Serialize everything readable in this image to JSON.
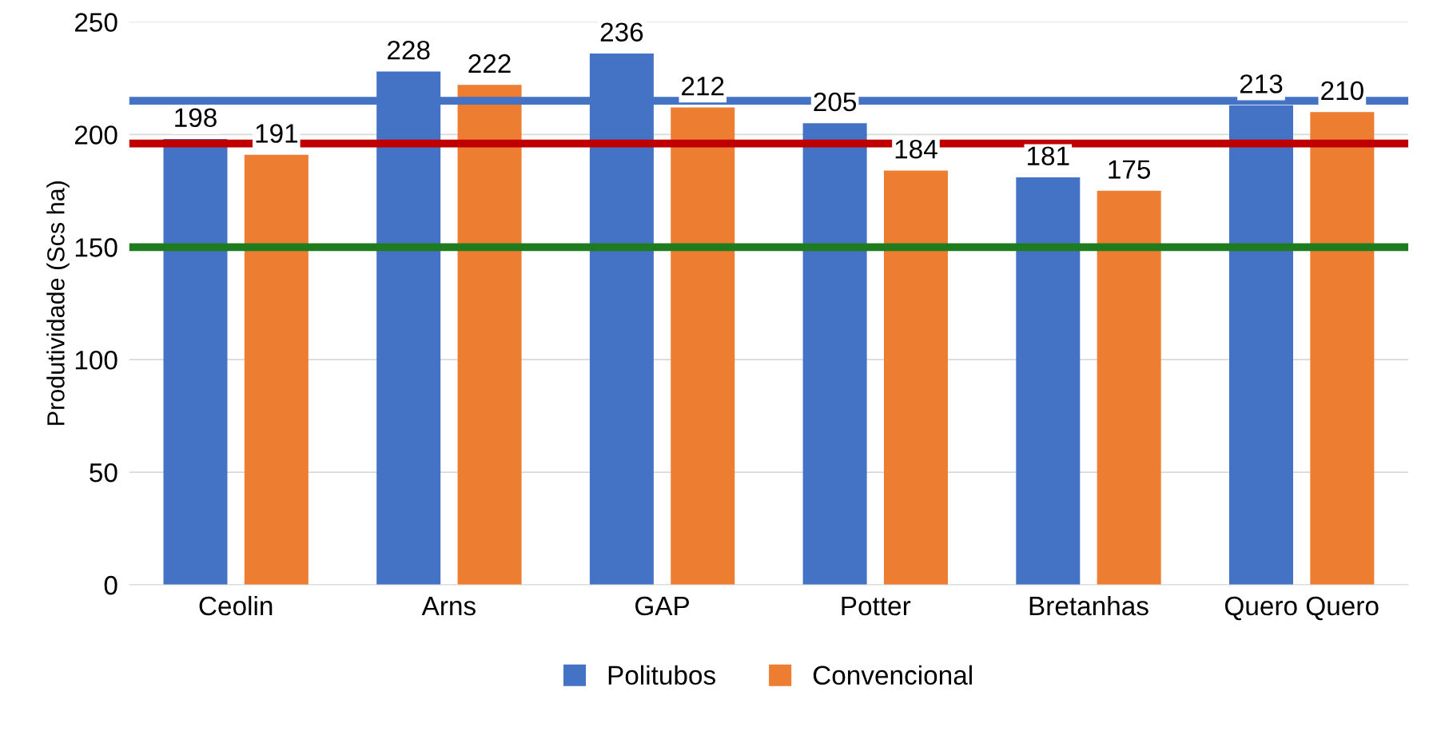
{
  "chart_data": {
    "type": "bar",
    "ylabel": "Produtividade (Scs ha)",
    "categories": [
      "Ceolin",
      "Arns",
      "GAP",
      "Potter",
      "Bretanhas",
      "Quero Quero"
    ],
    "series": [
      {
        "name": "Politubos",
        "color": "#4472c4",
        "values": [
          198,
          228,
          236,
          205,
          181,
          213
        ]
      },
      {
        "name": "Convencional",
        "color": "#ed7d31",
        "values": [
          191,
          222,
          212,
          184,
          175,
          210
        ]
      }
    ],
    "ylim": [
      0,
      250
    ],
    "yticks": [
      0,
      50,
      100,
      150,
      200,
      250
    ],
    "grid": "y",
    "legend": "bottom",
    "data_labels": true,
    "ref_lines": [
      {
        "axis": "y",
        "value": 215,
        "label": null,
        "color": "#4472c4"
      },
      {
        "axis": "y",
        "value": 196,
        "label": null,
        "color": "#c00000"
      },
      {
        "axis": "y",
        "value": 150,
        "label": null,
        "color": "#1e7b1e"
      }
    ]
  }
}
